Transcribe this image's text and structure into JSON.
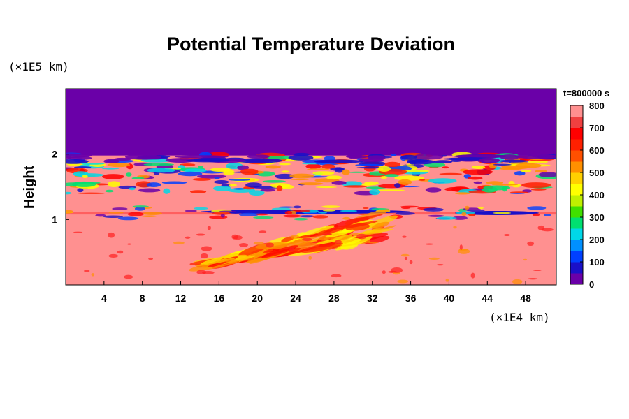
{
  "chart_data": {
    "type": "heatmap",
    "title": "Potential Temperature Deviation",
    "xlabel": "",
    "ylabel": "Height",
    "x_unit_label": "(×1E4 km)",
    "y_unit_label": "(×1E5 km)",
    "time_label": "t=800000 s",
    "xlim": [
      0,
      51.2
    ],
    "ylim": [
      0,
      3.0
    ],
    "x_ticks": [
      4,
      8,
      12,
      16,
      20,
      24,
      28,
      32,
      36,
      40,
      44,
      48
    ],
    "y_ticks": [
      1,
      2
    ],
    "colorbar": {
      "min": 0,
      "max": 800,
      "ticks": [
        0,
        100,
        200,
        300,
        400,
        500,
        600,
        700,
        800
      ],
      "colors": [
        "#6a00a8",
        "#1a10c8",
        "#0040ff",
        "#0090ff",
        "#00d8e8",
        "#00e070",
        "#40e000",
        "#c0f000",
        "#ffff00",
        "#ffd000",
        "#ff9000",
        "#ff5000",
        "#ff2000",
        "#ff0000",
        "#f04040",
        "#ff9090"
      ]
    },
    "field_summary": {
      "upper_region": {
        "y_range": [
          2.0,
          3.0
        ],
        "value": 0
      },
      "lower_region": {
        "y_range": [
          0,
          1.9
        ],
        "value": 800
      },
      "features": [
        {
          "x": [
            0,
            51.2
          ],
          "y": [
            1.75,
            2.0
          ],
          "description": "turbulent mixing layer"
        },
        {
          "x": [
            0,
            51.2
          ],
          "y": [
            1.0,
            1.2
          ],
          "description": "cold band near height 1"
        },
        {
          "x": [
            15,
            33
          ],
          "y": [
            0.2,
            1.1
          ],
          "description": "warm plume"
        }
      ]
    }
  }
}
